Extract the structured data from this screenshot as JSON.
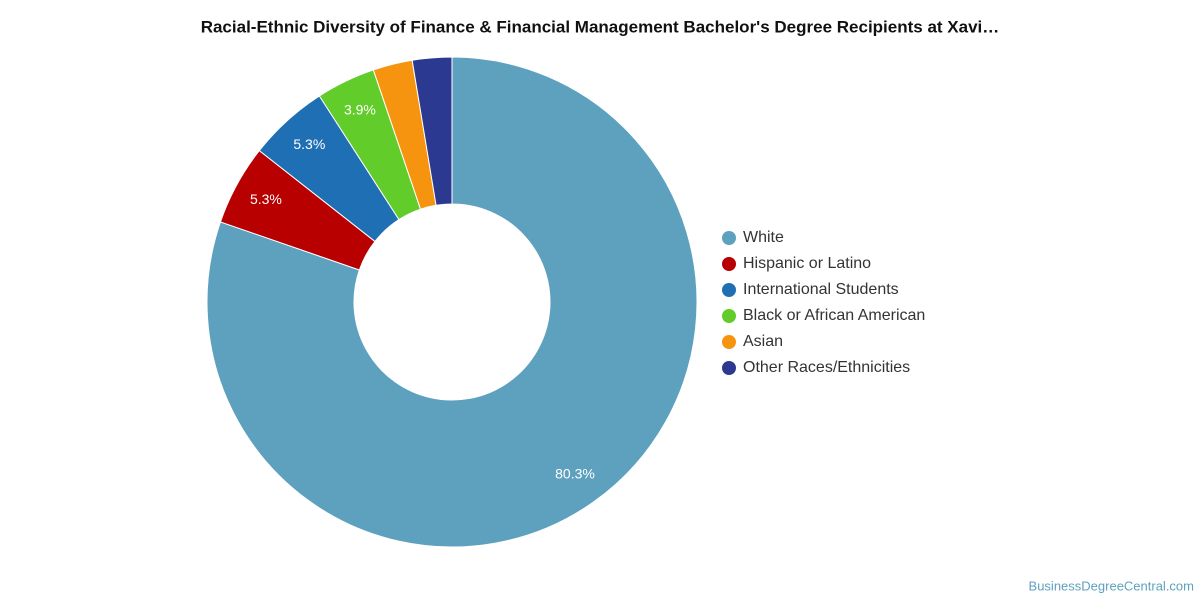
{
  "chart_data": {
    "type": "donut",
    "title": "Racial-Ethnic Diversity of Finance & Financial Management Bachelor's Degree Recipients at Xavi…",
    "categories": [
      "White",
      "Hispanic or Latino",
      "International Students",
      "Black or African American",
      "Asian",
      "Other Races/Ethnicities"
    ],
    "values": [
      80.3,
      5.3,
      5.3,
      3.9,
      2.6,
      2.6
    ],
    "value_labels": [
      "80.3%",
      "5.3%",
      "5.3%",
      "3.9%",
      null,
      null
    ],
    "colors": [
      "#5ea1bf",
      "#b80000",
      "#1f6fb5",
      "#62cc2a",
      "#f7940f",
      "#2b3990"
    ],
    "legend": "right",
    "source": "BusinessDegreeCentral.com"
  }
}
